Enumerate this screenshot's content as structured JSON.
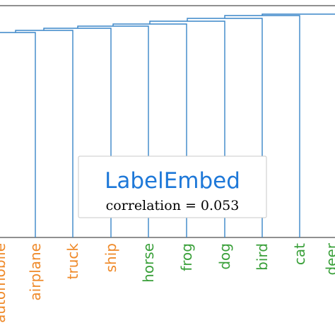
{
  "colors": {
    "link": "#3a86c8",
    "orange": "#ef8a2a",
    "green": "#3aa03a",
    "title": "#1e78d8"
  },
  "leaves": [
    {
      "label": "automobile",
      "color": "orange"
    },
    {
      "label": "airplane",
      "color": "orange"
    },
    {
      "label": "truck",
      "color": "orange"
    },
    {
      "label": "ship",
      "color": "orange"
    },
    {
      "label": "horse",
      "color": "green"
    },
    {
      "label": "frog",
      "color": "green"
    },
    {
      "label": "dog",
      "color": "green"
    },
    {
      "label": "bird",
      "color": "green"
    },
    {
      "label": "cat",
      "color": "green"
    },
    {
      "label": "deer",
      "color": "green"
    }
  ],
  "legend_box": {
    "title": "LabelEmbed",
    "subtitle": "correlation = 0.053"
  }
}
